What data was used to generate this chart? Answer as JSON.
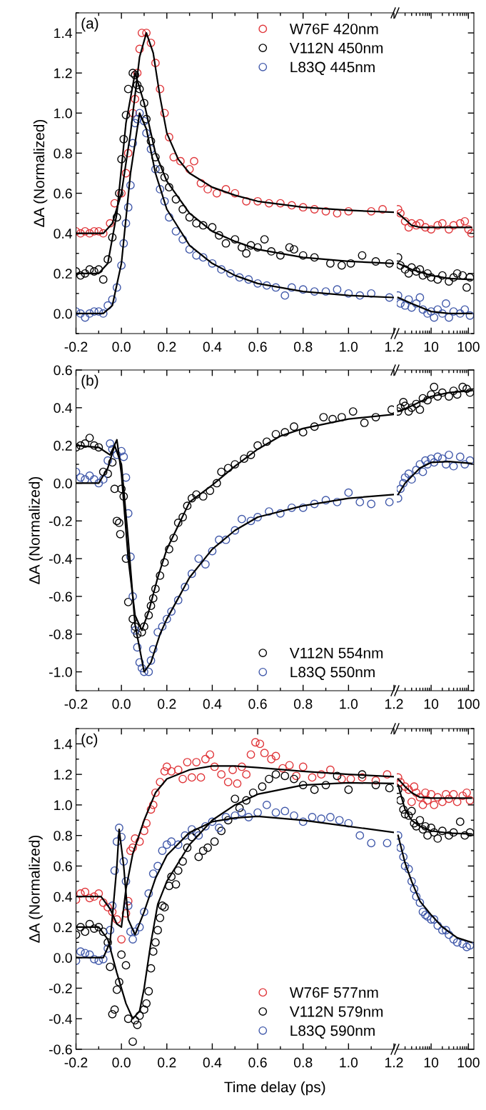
{
  "chart_data": [
    {
      "type": "scatter",
      "annotations": [
        "(a)"
      ],
      "ylabel": "ΔA (Normalized)",
      "xlim": [
        -0.2,
        1.2
      ],
      "xticks": [
        {
          "value": -0.2,
          "label": "-0.2"
        },
        {
          "value": 0.0,
          "label": "0.0"
        },
        0.2,
        0.4,
        0.6,
        0.8,
        {
          "value": 1.0,
          "label": "1.0"
        },
        1.2
      ],
      "ylim": [
        -0.1,
        1.5
      ],
      "yticks": [
        {
          "value": 0.0,
          "label": "0.0"
        },
        0.2,
        0.4,
        0.6,
        0.8,
        {
          "value": 1.0,
          "label": "1.0"
        },
        1.2,
        1.4
      ],
      "legend": "top right",
      "series": [
        {
          "name": "W76F 420nm",
          "color": "#e0363a",
          "marker": "circle",
          "x": [
            -0.2,
            -0.18,
            -0.16,
            -0.14,
            -0.12,
            -0.1,
            -0.08,
            -0.05,
            -0.03,
            0.0,
            0.02,
            0.03,
            0.05,
            0.06,
            0.07,
            0.08,
            0.09,
            0.11,
            0.13,
            0.15,
            0.17,
            0.19,
            0.21,
            0.23,
            0.26,
            0.3,
            0.32,
            0.35,
            0.38,
            0.42,
            0.46,
            0.5,
            0.55,
            0.6,
            0.65,
            0.7,
            0.75,
            0.8,
            0.85,
            0.9,
            0.95,
            1.0,
            1.1,
            1.15
          ],
          "values": [
            0.41,
            0.4,
            0.41,
            0.4,
            0.41,
            0.41,
            0.4,
            0.45,
            0.55,
            0.6,
            0.7,
            0.8,
            1.0,
            1.07,
            1.2,
            1.32,
            1.4,
            1.4,
            1.35,
            1.25,
            1.12,
            1.0,
            0.88,
            0.78,
            0.76,
            0.72,
            0.76,
            0.65,
            0.62,
            0.6,
            0.62,
            0.6,
            0.56,
            0.56,
            0.55,
            0.55,
            0.54,
            0.53,
            0.52,
            0.51,
            0.5,
            0.51,
            0.51,
            0.52
          ]
        },
        {
          "name": "V112N 450nm",
          "color": "#000000",
          "marker": "circle",
          "x": [
            -0.2,
            -0.18,
            -0.16,
            -0.14,
            -0.12,
            -0.1,
            -0.08,
            -0.06,
            -0.04,
            -0.02,
            -0.01,
            0.0,
            0.01,
            0.02,
            0.03,
            0.05,
            0.06,
            0.07,
            0.08,
            0.1,
            0.11,
            0.13,
            0.15,
            0.17,
            0.19,
            0.21,
            0.24,
            0.27,
            0.3,
            0.33,
            0.36,
            0.4,
            0.43,
            0.46,
            0.5,
            0.53,
            0.55,
            0.57,
            0.6,
            0.63,
            0.66,
            0.7,
            0.74,
            0.76,
            0.8,
            0.85,
            0.92,
            0.97,
            1.01,
            1.06,
            1.12,
            1.18
          ],
          "values": [
            0.21,
            0.19,
            0.2,
            0.22,
            0.21,
            0.22,
            0.17,
            0.27,
            0.38,
            0.48,
            0.6,
            0.77,
            0.87,
            0.99,
            1.12,
            1.2,
            1.19,
            1.14,
            1.12,
            1.05,
            0.97,
            0.86,
            0.78,
            0.72,
            0.68,
            0.63,
            0.57,
            0.52,
            0.48,
            0.45,
            0.44,
            0.43,
            0.39,
            0.35,
            0.37,
            0.33,
            0.3,
            0.34,
            0.33,
            0.37,
            0.31,
            0.29,
            0.33,
            0.32,
            0.29,
            0.28,
            0.25,
            0.24,
            0.25,
            0.29,
            0.26,
            0.25
          ]
        },
        {
          "name": "L83Q 445nm",
          "color": "#4159aa",
          "marker": "circle",
          "x": [
            -0.2,
            -0.18,
            -0.16,
            -0.14,
            -0.12,
            -0.1,
            -0.08,
            -0.06,
            -0.04,
            -0.02,
            0.0,
            0.01,
            0.02,
            0.03,
            0.04,
            0.05,
            0.06,
            0.07,
            0.08,
            0.1,
            0.11,
            0.13,
            0.15,
            0.17,
            0.19,
            0.21,
            0.24,
            0.27,
            0.3,
            0.33,
            0.36,
            0.4,
            0.44,
            0.48,
            0.52,
            0.56,
            0.6,
            0.64,
            0.68,
            0.72,
            0.75,
            0.8,
            0.85,
            0.9,
            0.95,
            1.0,
            1.05,
            1.1,
            1.18
          ],
          "values": [
            0.01,
            0.0,
            -0.02,
            0.0,
            0.01,
            0.01,
            0.0,
            0.04,
            0.07,
            0.13,
            0.24,
            0.35,
            0.45,
            0.53,
            0.64,
            0.85,
            0.95,
            0.97,
            1.0,
            0.96,
            0.9,
            0.82,
            0.72,
            0.62,
            0.56,
            0.48,
            0.41,
            0.37,
            0.32,
            0.29,
            0.28,
            0.25,
            0.22,
            0.2,
            0.18,
            0.17,
            0.15,
            0.14,
            0.13,
            0.09,
            0.13,
            0.12,
            0.11,
            0.11,
            0.12,
            0.1,
            0.09,
            0.1,
            0.08
          ]
        },
        {
          "color": "#000000",
          "type": "line",
          "x": [
            -0.2,
            -0.08,
            -0.04,
            0.0,
            0.04,
            0.08,
            0.11,
            0.14,
            0.17,
            0.2,
            0.25,
            0.3,
            0.4,
            0.5,
            0.6,
            0.8,
            1.0,
            1.2
          ],
          "values": [
            0.4,
            0.4,
            0.45,
            0.6,
            0.9,
            1.28,
            1.4,
            1.3,
            1.08,
            0.9,
            0.77,
            0.7,
            0.63,
            0.59,
            0.56,
            0.53,
            0.515,
            0.505
          ]
        },
        {
          "color": "#000000",
          "type": "line",
          "x": [
            -0.2,
            -0.1,
            -0.06,
            -0.02,
            0.02,
            0.06,
            0.1,
            0.15,
            0.2,
            0.3,
            0.4,
            0.5,
            0.6,
            0.8,
            1.0,
            1.2
          ],
          "values": [
            0.2,
            0.2,
            0.25,
            0.5,
            0.95,
            1.2,
            1.05,
            0.8,
            0.66,
            0.5,
            0.41,
            0.36,
            0.32,
            0.28,
            0.26,
            0.25
          ]
        },
        {
          "color": "#000000",
          "type": "line",
          "x": [
            -0.2,
            -0.08,
            -0.04,
            0.0,
            0.04,
            0.08,
            0.11,
            0.15,
            0.2,
            0.3,
            0.4,
            0.5,
            0.6,
            0.8,
            1.0,
            1.2
          ],
          "values": [
            0.0,
            0.0,
            0.04,
            0.25,
            0.7,
            1.0,
            0.92,
            0.7,
            0.52,
            0.34,
            0.25,
            0.19,
            0.15,
            0.11,
            0.09,
            0.08
          ]
        }
      ]
    },
    {
      "type": "scatter",
      "log": "x",
      "xlim": [
        1.2,
        140
      ],
      "xticks": [
        10,
        100
      ],
      "ylim": [
        -0.1,
        1.5
      ],
      "yticks": [
        0,
        0.2,
        0.4,
        0.6,
        0.8,
        1,
        1.2,
        1.4
      ],
      "tick_labels": "x",
      "series": [
        {
          "color": "#e0363a",
          "marker": "circle",
          "x": [
            1.3,
            1.5,
            2,
            2.5,
            3,
            4,
            5,
            7,
            10,
            15,
            20,
            30,
            40,
            60,
            80,
            100,
            120
          ],
          "values": [
            0.52,
            0.5,
            0.46,
            0.43,
            0.45,
            0.44,
            0.45,
            0.43,
            0.42,
            0.44,
            0.45,
            0.42,
            0.44,
            0.45,
            0.46,
            0.42,
            0.4
          ]
        },
        {
          "color": "#000000",
          "marker": "circle",
          "x": [
            1.3,
            1.5,
            2,
            2.5,
            3,
            4,
            5,
            6,
            8,
            10,
            15,
            20,
            30,
            40,
            50,
            70,
            90,
            110
          ],
          "values": [
            0.28,
            0.24,
            0.22,
            0.2,
            0.23,
            0.21,
            0.22,
            0.19,
            0.2,
            0.18,
            0.17,
            0.19,
            0.16,
            0.18,
            0.2,
            0.19,
            0.13,
            0.18
          ]
        },
        {
          "color": "#4159aa",
          "marker": "circle",
          "x": [
            1.3,
            1.5,
            2,
            2.5,
            3,
            4,
            5,
            6,
            8,
            10,
            12,
            15,
            20,
            25,
            30,
            40,
            60,
            80,
            110
          ],
          "values": [
            0.09,
            0.05,
            0.04,
            0.07,
            0.03,
            0.05,
            0.08,
            0.02,
            0.0,
            0.01,
            -0.02,
            0.02,
            0.0,
            0.05,
            -0.02,
            0.01,
            0.0,
            0.02,
            -0.01
          ]
        },
        {
          "color": "#000000",
          "type": "line",
          "x": [
            1.3,
            2,
            3,
            5,
            10,
            120
          ],
          "values": [
            0.5,
            0.47,
            0.44,
            0.43,
            0.43,
            0.43
          ]
        },
        {
          "color": "#000000",
          "type": "line",
          "x": [
            1.3,
            3,
            10,
            30,
            120
          ],
          "values": [
            0.25,
            0.22,
            0.19,
            0.175,
            0.17
          ]
        },
        {
          "color": "#000000",
          "type": "line",
          "x": [
            1.3,
            3,
            10,
            30,
            120
          ],
          "values": [
            0.08,
            0.05,
            0.01,
            0.0,
            0.0
          ]
        }
      ]
    },
    {
      "type": "scatter",
      "annotations": [
        "(b)"
      ],
      "ylabel": "ΔA (Normalized)",
      "xlim": [
        -0.2,
        1.2
      ],
      "xticks": [
        {
          "value": -0.2,
          "label": "-0.2"
        },
        {
          "value": 0.0,
          "label": "0.0"
        },
        0.2,
        0.4,
        0.6,
        0.8,
        {
          "value": 1.0,
          "label": "1.0"
        },
        1.2
      ],
      "ylim": [
        -1.1,
        0.6
      ],
      "yticks": [
        {
          "value": -1.0,
          "label": "-1.0"
        },
        -0.8,
        -0.6,
        -0.4,
        -0.2,
        {
          "value": 0.0,
          "label": "0.0"
        },
        0.2,
        0.4,
        0.6
      ],
      "legend": "bottom right",
      "series": [
        {
          "name": "V112N 554nm",
          "color": "#000000",
          "marker": "circle",
          "x": [
            -0.2,
            -0.18,
            -0.16,
            -0.14,
            -0.12,
            -0.1,
            -0.08,
            -0.06,
            -0.04,
            -0.03,
            -0.02,
            -0.01,
            -0.005,
            0.0,
            0.01,
            0.02,
            0.03,
            0.05,
            0.06,
            0.07,
            0.09,
            0.1,
            0.12,
            0.13,
            0.14,
            0.15,
            0.17,
            0.19,
            0.21,
            0.23,
            0.25,
            0.27,
            0.29,
            0.31,
            0.33,
            0.36,
            0.39,
            0.42,
            0.44,
            0.47,
            0.5,
            0.54,
            0.57,
            0.6,
            0.64,
            0.68,
            0.72,
            0.76,
            0.8,
            0.85,
            0.89,
            0.93,
            0.97,
            1.02,
            1.07,
            1.12,
            1.19
          ],
          "values": [
            0.19,
            0.2,
            0.21,
            0.24,
            0.2,
            0.19,
            0.06,
            0.05,
            0.11,
            -0.03,
            -0.2,
            -0.21,
            -0.27,
            -0.03,
            -0.07,
            -0.4,
            -0.63,
            -0.72,
            -0.76,
            -0.8,
            -0.79,
            -0.76,
            -0.7,
            -0.65,
            -0.61,
            -0.56,
            -0.49,
            -0.42,
            -0.35,
            -0.29,
            -0.21,
            -0.18,
            -0.12,
            -0.08,
            -0.06,
            -0.07,
            -0.04,
            0.0,
            0.06,
            0.08,
            0.1,
            0.13,
            0.15,
            0.2,
            0.22,
            0.26,
            0.27,
            0.3,
            0.27,
            0.3,
            0.35,
            0.34,
            0.35,
            0.38,
            0.32,
            0.35,
            0.39
          ]
        },
        {
          "name": "L83Q 550nm",
          "color": "#4159aa",
          "marker": "circle",
          "x": [
            -0.2,
            -0.18,
            -0.16,
            -0.14,
            -0.12,
            -0.1,
            -0.08,
            -0.06,
            -0.05,
            -0.04,
            -0.02,
            0.0,
            0.01,
            0.02,
            0.03,
            0.04,
            0.05,
            0.06,
            0.07,
            0.08,
            0.09,
            0.1,
            0.12,
            0.13,
            0.14,
            0.16,
            0.18,
            0.2,
            0.22,
            0.25,
            0.28,
            0.31,
            0.34,
            0.37,
            0.4,
            0.43,
            0.46,
            0.5,
            0.53,
            0.57,
            0.6,
            0.65,
            0.7,
            0.75,
            0.8,
            0.85,
            0.9,
            0.95,
            1.0,
            1.05,
            1.1,
            1.18
          ],
          "values": [
            0.06,
            0.03,
            0.02,
            0.04,
            0.02,
            0.0,
            0.02,
            0.12,
            0.21,
            0.18,
            0.15,
            0.17,
            0.14,
            0.03,
            -0.16,
            -0.39,
            -0.6,
            -0.78,
            -0.87,
            -0.95,
            -0.98,
            -1.0,
            -1.0,
            -0.94,
            -0.88,
            -0.79,
            -0.76,
            -0.72,
            -0.68,
            -0.62,
            -0.55,
            -0.48,
            -0.4,
            -0.43,
            -0.36,
            -0.3,
            -0.3,
            -0.25,
            -0.19,
            -0.2,
            -0.18,
            -0.15,
            -0.16,
            -0.13,
            -0.13,
            -0.11,
            -0.09,
            -0.1,
            -0.05,
            -0.1,
            -0.11,
            -0.1
          ]
        },
        {
          "color": "#000000",
          "type": "line",
          "x": [
            -0.2,
            -0.1,
            -0.05,
            -0.02,
            0.0,
            0.03,
            0.06,
            0.09,
            0.12,
            0.16,
            0.2,
            0.3,
            0.4,
            0.5,
            0.6,
            0.7,
            0.8,
            1.0,
            1.2
          ],
          "values": [
            0.2,
            0.19,
            0.15,
            0.23,
            0.05,
            -0.4,
            -0.7,
            -0.78,
            -0.68,
            -0.5,
            -0.35,
            -0.1,
            -0.01,
            0.09,
            0.18,
            0.25,
            0.29,
            0.34,
            0.365
          ]
        },
        {
          "color": "#000000",
          "type": "line",
          "x": [
            -0.2,
            -0.1,
            -0.06,
            -0.03,
            0.0,
            0.03,
            0.06,
            0.1,
            0.13,
            0.17,
            0.2,
            0.3,
            0.4,
            0.5,
            0.6,
            0.8,
            1.0,
            1.2
          ],
          "values": [
            0.0,
            0.0,
            0.08,
            0.2,
            0.1,
            -0.3,
            -0.75,
            -1.0,
            -0.95,
            -0.8,
            -0.72,
            -0.5,
            -0.35,
            -0.25,
            -0.18,
            -0.12,
            -0.08,
            -0.06
          ]
        }
      ]
    },
    {
      "type": "scatter",
      "log": "x",
      "xlim": [
        1.2,
        140
      ],
      "xticks": [
        10,
        100
      ],
      "ylim": [
        -1.1,
        0.6
      ],
      "yticks": [
        -1,
        -0.8,
        -0.6,
        -0.4,
        -0.2,
        0,
        0.2,
        0.4,
        0.6
      ],
      "tick_labels": "x",
      "series": [
        {
          "color": "#000000",
          "marker": "circle",
          "x": [
            1.3,
            1.5,
            1.8,
            2,
            2.5,
            3,
            4,
            5,
            6,
            8,
            10,
            12,
            15,
            20,
            30,
            40,
            50,
            70,
            90,
            110
          ],
          "values": [
            0.38,
            0.4,
            0.43,
            0.41,
            0.38,
            0.4,
            0.42,
            0.39,
            0.45,
            0.44,
            0.47,
            0.51,
            0.46,
            0.48,
            0.46,
            0.49,
            0.47,
            0.51,
            0.5,
            0.48
          ]
        },
        {
          "color": "#4159aa",
          "marker": "circle",
          "x": [
            1.3,
            1.5,
            1.8,
            2,
            2.5,
            3,
            4,
            5,
            6,
            7,
            8,
            10,
            12,
            15,
            20,
            25,
            30,
            40,
            60,
            80,
            110
          ],
          "values": [
            -0.08,
            -0.03,
            0.0,
            0.03,
            0.05,
            0.02,
            0.07,
            0.1,
            0.06,
            0.12,
            0.1,
            0.13,
            0.11,
            0.14,
            0.13,
            0.1,
            0.15,
            0.09,
            0.14,
            0.1,
            0.12
          ]
        },
        {
          "color": "#000000",
          "type": "line",
          "x": [
            1.3,
            3,
            10,
            30,
            120
          ],
          "values": [
            0.38,
            0.41,
            0.46,
            0.48,
            0.49
          ]
        },
        {
          "color": "#000000",
          "type": "line",
          "x": [
            1.3,
            2,
            5,
            10,
            30,
            120
          ],
          "values": [
            -0.06,
            0.0,
            0.08,
            0.11,
            0.115,
            0.105
          ]
        }
      ]
    },
    {
      "type": "scatter",
      "annotations": [
        "(c)"
      ],
      "ylabel": "ΔA (Normalized)",
      "xlabel": "Time delay (ps)",
      "xlim": [
        -0.2,
        1.2
      ],
      "xticks": [
        {
          "value": -0.2,
          "label": "-0.2"
        },
        {
          "value": 0.0,
          "label": "0.0"
        },
        0.2,
        0.4,
        0.6,
        0.8,
        {
          "value": 1.0,
          "label": "1.0"
        },
        1.2
      ],
      "ylim": [
        -0.6,
        1.5
      ],
      "yticks": [
        -0.6,
        -0.4,
        -0.2,
        {
          "value": 0.0,
          "label": "0.0"
        },
        0.2,
        0.4,
        0.6,
        0.8,
        {
          "value": 1.0,
          "label": "1.0"
        },
        1.2,
        1.4
      ],
      "legend": "bottom right",
      "series": [
        {
          "name": "W76F 577nm",
          "color": "#e0363a",
          "marker": "circle",
          "x": [
            -0.2,
            -0.18,
            -0.16,
            -0.14,
            -0.12,
            -0.1,
            -0.08,
            -0.06,
            -0.04,
            -0.02,
            0.0,
            0.02,
            0.03,
            0.04,
            0.05,
            0.06,
            0.08,
            0.1,
            0.11,
            0.13,
            0.14,
            0.15,
            0.17,
            0.19,
            0.2,
            0.22,
            0.25,
            0.27,
            0.29,
            0.31,
            0.33,
            0.35,
            0.37,
            0.39,
            0.41,
            0.44,
            0.47,
            0.49,
            0.51,
            0.53,
            0.55,
            0.57,
            0.59,
            0.61,
            0.63,
            0.66,
            0.68,
            0.71,
            0.74,
            0.77,
            0.8,
            0.84,
            0.88,
            0.92,
            0.97,
            1.01,
            1.06,
            1.12,
            1.17
          ],
          "values": [
            0.38,
            0.42,
            0.43,
            0.39,
            0.4,
            0.42,
            0.36,
            0.33,
            0.3,
            0.25,
            0.12,
            0.29,
            0.37,
            0.7,
            0.72,
            0.78,
            0.76,
            0.83,
            0.88,
            0.97,
            1.0,
            1.08,
            1.15,
            1.22,
            1.25,
            1.22,
            1.23,
            1.17,
            1.28,
            1.18,
            1.28,
            1.18,
            1.3,
            1.33,
            1.25,
            1.2,
            1.15,
            1.23,
            1.14,
            1.25,
            1.2,
            1.33,
            1.41,
            1.4,
            1.34,
            1.3,
            1.32,
            1.24,
            1.26,
            1.19,
            1.25,
            1.18,
            1.2,
            1.23,
            1.17,
            1.17,
            1.18,
            1.16,
            1.2
          ]
        },
        {
          "name": "V112N 579nm",
          "color": "#000000",
          "marker": "circle",
          "x": [
            -0.2,
            -0.18,
            -0.16,
            -0.14,
            -0.12,
            -0.1,
            -0.08,
            -0.06,
            -0.05,
            -0.04,
            -0.03,
            -0.02,
            -0.01,
            0.0,
            0.02,
            0.03,
            0.05,
            0.06,
            0.07,
            0.08,
            0.1,
            0.11,
            0.12,
            0.13,
            0.14,
            0.15,
            0.16,
            0.17,
            0.18,
            0.19,
            0.21,
            0.22,
            0.24,
            0.25,
            0.27,
            0.29,
            0.31,
            0.33,
            0.34,
            0.36,
            0.38,
            0.41,
            0.44,
            0.47,
            0.5,
            0.52,
            0.55,
            0.58,
            0.62,
            0.65,
            0.68,
            0.72,
            0.76,
            0.8,
            0.85,
            0.9,
            0.95,
            1.0,
            1.06,
            1.12,
            1.18
          ],
          "values": [
            0.15,
            0.2,
            0.17,
            0.22,
            0.19,
            0.2,
            0.17,
            0.1,
            -0.06,
            -0.37,
            -0.34,
            -0.21,
            -0.16,
            0.02,
            -0.05,
            -0.4,
            -0.55,
            -0.41,
            -0.44,
            -0.38,
            -0.34,
            -0.3,
            -0.22,
            -0.07,
            0.04,
            0.1,
            0.18,
            0.26,
            0.34,
            0.33,
            0.47,
            0.53,
            0.48,
            0.57,
            0.63,
            0.72,
            0.79,
            0.82,
            0.66,
            0.7,
            0.72,
            0.76,
            0.83,
            0.9,
            1.04,
            0.98,
            1.03,
            1.08,
            1.12,
            1.17,
            1.2,
            1.19,
            1.17,
            1.13,
            1.1,
            1.13,
            1.19,
            1.1,
            1.2,
            1.13,
            1.11
          ]
        },
        {
          "name": "L83Q 590nm",
          "color": "#4159aa",
          "marker": "circle",
          "x": [
            -0.2,
            -0.18,
            -0.16,
            -0.14,
            -0.12,
            -0.1,
            -0.08,
            -0.06,
            -0.05,
            -0.04,
            -0.03,
            -0.02,
            -0.01,
            0.0,
            0.01,
            0.02,
            0.03,
            0.04,
            0.05,
            0.06,
            0.08,
            0.1,
            0.12,
            0.14,
            0.16,
            0.18,
            0.2,
            0.22,
            0.25,
            0.28,
            0.31,
            0.34,
            0.37,
            0.4,
            0.43,
            0.46,
            0.5,
            0.53,
            0.56,
            0.6,
            0.64,
            0.68,
            0.72,
            0.76,
            0.8,
            0.84,
            0.88,
            0.92,
            0.96,
            1.0,
            1.05,
            1.1,
            1.17
          ],
          "values": [
            -0.02,
            0.04,
            0.03,
            0.02,
            -0.01,
            -0.02,
            -0.01,
            0.06,
            0.18,
            0.34,
            0.57,
            0.76,
            0.85,
            0.79,
            0.63,
            0.5,
            0.34,
            0.17,
            0.12,
            0.17,
            0.2,
            0.3,
            0.42,
            0.55,
            0.6,
            0.7,
            0.74,
            0.76,
            0.74,
            0.8,
            0.84,
            0.8,
            0.86,
            0.89,
            0.85,
            0.92,
            0.93,
            0.95,
            0.92,
            0.95,
            1.0,
            0.95,
            0.96,
            0.93,
            0.89,
            0.92,
            0.91,
            0.92,
            0.9,
            0.88,
            0.8,
            0.75,
            0.75
          ]
        },
        {
          "color": "#000000",
          "type": "line",
          "x": [
            -0.2,
            -0.09,
            -0.05,
            -0.02,
            0.0,
            0.02,
            0.05,
            0.1,
            0.15,
            0.2,
            0.3,
            0.4,
            0.5,
            0.6,
            0.8,
            1.0,
            1.2
          ],
          "values": [
            0.4,
            0.4,
            0.32,
            0.22,
            0.2,
            0.45,
            0.68,
            0.9,
            1.08,
            1.17,
            1.23,
            1.255,
            1.255,
            1.245,
            1.22,
            1.2,
            1.185
          ]
        },
        {
          "color": "#000000",
          "type": "line",
          "x": [
            -0.2,
            -0.1,
            -0.06,
            -0.02,
            0.02,
            0.05,
            0.08,
            0.1,
            0.13,
            0.16,
            0.2,
            0.3,
            0.4,
            0.5,
            0.6,
            0.8,
            1.0,
            1.2
          ],
          "values": [
            0.2,
            0.2,
            0.12,
            -0.1,
            -0.3,
            -0.4,
            -0.35,
            -0.2,
            0.1,
            0.35,
            0.5,
            0.74,
            0.9,
            1.0,
            1.07,
            1.13,
            1.145,
            1.14
          ]
        },
        {
          "color": "#000000",
          "type": "line",
          "x": [
            -0.2,
            -0.08,
            -0.05,
            -0.02,
            -0.01,
            0.01,
            0.03,
            0.06,
            0.1,
            0.15,
            0.2,
            0.3,
            0.4,
            0.5,
            0.6,
            0.8,
            1.0,
            1.2
          ],
          "values": [
            0.0,
            0.0,
            0.1,
            0.6,
            0.84,
            0.6,
            0.25,
            0.15,
            0.3,
            0.52,
            0.67,
            0.82,
            0.89,
            0.915,
            0.925,
            0.9,
            0.86,
            0.82
          ]
        }
      ]
    },
    {
      "type": "scatter",
      "log": "x",
      "xlim": [
        1.2,
        140
      ],
      "xticks": [
        10,
        100
      ],
      "ylim": [
        -0.6,
        1.5
      ],
      "yticks": [
        -0.6,
        -0.4,
        -0.2,
        0,
        0.2,
        0.4,
        0.6,
        0.8,
        1,
        1.2,
        1.4
      ],
      "tick_labels": "x",
      "series": [
        {
          "color": "#e0363a",
          "marker": "circle",
          "x": [
            1.3,
            1.5,
            2,
            2.5,
            3,
            3.5,
            4,
            5,
            6,
            7,
            8,
            10,
            12,
            15,
            20,
            25,
            30,
            40,
            50,
            70,
            90,
            110
          ],
          "values": [
            1.18,
            1.15,
            1.12,
            1.1,
            1.02,
            1.12,
            1.08,
            1.05,
            1.0,
            1.08,
            1.03,
            1.07,
            1.0,
            1.05,
            1.02,
            1.07,
            1.04,
            1.07,
            1.02,
            1.06,
            1.08,
            1.03
          ]
        },
        {
          "color": "#000000",
          "marker": "circle",
          "x": [
            1.3,
            1.5,
            1.8,
            2,
            2.5,
            3,
            3.5,
            4,
            5,
            6,
            7,
            8,
            10,
            12,
            15,
            20,
            30,
            40,
            60,
            80,
            110
          ],
          "values": [
            1.1,
            1.03,
            0.97,
            0.94,
            0.93,
            0.96,
            0.88,
            0.86,
            0.9,
            0.84,
            0.86,
            0.8,
            0.85,
            0.82,
            0.78,
            0.83,
            0.8,
            0.82,
            0.89,
            0.8,
            0.82
          ]
        },
        {
          "color": "#4159aa",
          "marker": "circle",
          "x": [
            1.3,
            1.5,
            1.8,
            2,
            2.5,
            3,
            3.5,
            4,
            5,
            6,
            7,
            8,
            10,
            12,
            15,
            20,
            25,
            30,
            40,
            50,
            70,
            90,
            110
          ],
          "values": [
            0.8,
            0.72,
            0.66,
            0.6,
            0.58,
            0.5,
            0.45,
            0.4,
            0.36,
            0.3,
            0.28,
            0.27,
            0.25,
            0.25,
            0.21,
            0.18,
            0.18,
            0.15,
            0.12,
            0.1,
            0.09,
            0.07,
            0.08
          ]
        },
        {
          "color": "#000000",
          "type": "line",
          "x": [
            1.3,
            2,
            3,
            5,
            10,
            120
          ],
          "values": [
            1.17,
            1.12,
            1.08,
            1.05,
            1.045,
            1.045
          ]
        },
        {
          "color": "#000000",
          "type": "line",
          "x": [
            1.3,
            2,
            3,
            5,
            10,
            30,
            120
          ],
          "values": [
            1.13,
            0.97,
            0.9,
            0.86,
            0.83,
            0.815,
            0.81
          ]
        },
        {
          "color": "#000000",
          "type": "line",
          "x": [
            1.3,
            2,
            3,
            5,
            10,
            20,
            50,
            120
          ],
          "values": [
            0.8,
            0.62,
            0.5,
            0.37,
            0.28,
            0.2,
            0.13,
            0.1
          ]
        }
      ]
    }
  ]
}
